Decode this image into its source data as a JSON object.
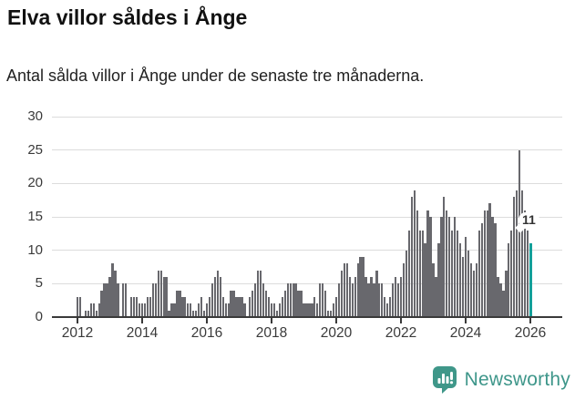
{
  "header": {
    "title": "Elva villor såldes i Ånge",
    "subtitle": "Antal sålda villor i Ånge under de senaste tre månaderna."
  },
  "chart_data": {
    "type": "bar",
    "title": "Elva villor såldes i Ånge",
    "subtitle": "Antal sålda villor i Ånge under de senaste tre månaderna.",
    "xlabel": "",
    "ylabel": "",
    "x_start": "2012-01",
    "x_freq": "monthly",
    "values": [
      3,
      3,
      0,
      1,
      1,
      2,
      2,
      1,
      2,
      4,
      5,
      5,
      6,
      8,
      7,
      5,
      0,
      5,
      5,
      0,
      3,
      3,
      3,
      2,
      2,
      2,
      3,
      3,
      5,
      5,
      7,
      7,
      6,
      6,
      1,
      2,
      2,
      4,
      4,
      3,
      3,
      2,
      2,
      1,
      1,
      2,
      3,
      1,
      2,
      3,
      5,
      6,
      7,
      6,
      3,
      2,
      2,
      4,
      4,
      3,
      3,
      3,
      2,
      0,
      3,
      4,
      5,
      7,
      7,
      5,
      4,
      3,
      2,
      2,
      1,
      2,
      3,
      4,
      5,
      5,
      5,
      5,
      4,
      4,
      2,
      2,
      2,
      2,
      3,
      2,
      5,
      5,
      4,
      1,
      1,
      2,
      3,
      5,
      7,
      8,
      8,
      6,
      5,
      6,
      8,
      9,
      9,
      6,
      5,
      6,
      5,
      7,
      5,
      5,
      3,
      2,
      3,
      5,
      6,
      5,
      6,
      8,
      10,
      13,
      18,
      19,
      16,
      13,
      13,
      11,
      16,
      15,
      8,
      6,
      11,
      15,
      18,
      16,
      15,
      13,
      15,
      13,
      11,
      9,
      12,
      10,
      8,
      7,
      8,
      13,
      14,
      16,
      16,
      17,
      15,
      14,
      6,
      5,
      4,
      7,
      11,
      13,
      18,
      19,
      25,
      19,
      16,
      13,
      11
    ],
    "highlight_last_bar": true,
    "annotation": {
      "text": "11",
      "applies_to": "last-bar"
    },
    "ylim": [
      0,
      30
    ],
    "yticks": [
      0,
      5,
      10,
      15,
      20,
      25,
      30
    ],
    "xtick_labels": [
      "2012",
      "2014",
      "2016",
      "2018",
      "2020",
      "2022",
      "2024",
      "2026"
    ],
    "grid": "horizontal",
    "legend": "none",
    "colors": {
      "bar": "#68686d",
      "highlight": "#13a09a",
      "gridline": "#dcdcdc",
      "axis": "#3a3a3a",
      "tick_label": "#3a3a3a"
    }
  },
  "footer": {
    "brand": "Newsworthy",
    "logo_icon": "speech-bubble-bar-chart-icon",
    "brand_color": "#3e968a"
  }
}
